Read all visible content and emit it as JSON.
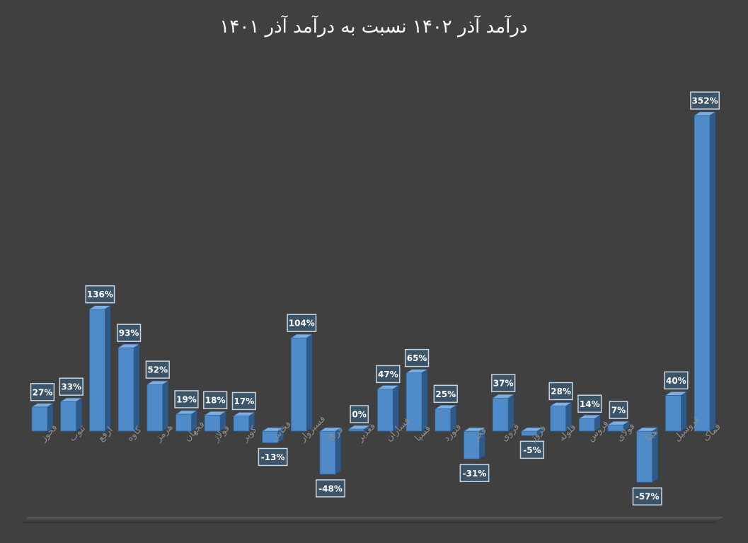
{
  "chart_data": {
    "type": "bar",
    "title": "درآمد آذر ۱۴۰۲ نسبت به درآمد آذر ۱۴۰۱",
    "xlabel": "",
    "ylabel": "",
    "categories": [
      "فخوز",
      "ثنوب",
      "ارفع",
      "کاوه",
      "هرمز",
      "فجهان",
      "فولاژ",
      "کویر",
      "فخاس",
      "فسبزوار",
      "فرکا",
      "فغدیر",
      "فسازان",
      "فسپا",
      "فنورد",
      "فجر",
      "فروی",
      "فروژ",
      "فلوله",
      "فروس",
      "فولای",
      "هیتا",
      "فروسیل",
      "فماک"
    ],
    "values": [
      27,
      33,
      136,
      93,
      52,
      19,
      18,
      17,
      -13,
      104,
      -48,
      0,
      47,
      65,
      25,
      -31,
      37,
      -5,
      28,
      14,
      7,
      -57,
      40,
      352
    ],
    "data_labels": [
      "27%",
      "33%",
      "136%",
      "93%",
      "52%",
      "19%",
      "18%",
      "17%",
      "-13%",
      "104%",
      "-48%",
      "0%",
      "47%",
      "65%",
      "25%",
      "-31%",
      "37%",
      "-5%",
      "28%",
      "14%",
      "7%",
      "-57%",
      "40%",
      "352%"
    ],
    "bar_color": "#4f8ac9",
    "grid": false,
    "legend": "none"
  }
}
